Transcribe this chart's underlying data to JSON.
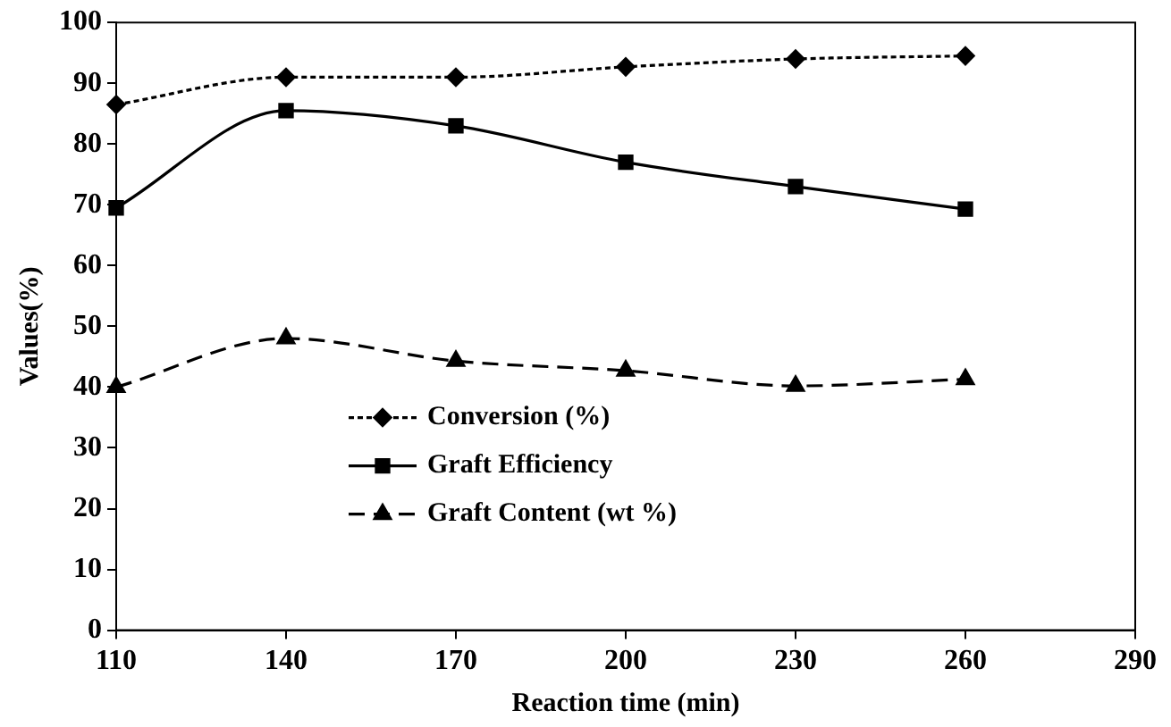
{
  "chart_data": {
    "type": "line",
    "xlabel": "Reaction time (min)",
    "ylabel": "Values(%)",
    "x": [
      110,
      140,
      170,
      200,
      230,
      260
    ],
    "series": [
      {
        "name": "Conversion (%)",
        "color": "#000000",
        "marker": "diamond",
        "line_style": "dotted",
        "values": [
          86.5,
          91,
          91,
          92.7,
          94,
          94.5
        ]
      },
      {
        "name": "Graft Efficiency",
        "color": "#000000",
        "marker": "square",
        "line_style": "solid",
        "values": [
          69.5,
          85.5,
          83,
          77,
          73,
          69.3
        ]
      },
      {
        "name": "Graft Content (wt %)",
        "color": "#000000",
        "marker": "triangle",
        "line_style": "dashed",
        "values": [
          40,
          48,
          44.3,
          42.7,
          40.2,
          41.3
        ]
      }
    ],
    "xlim": [
      110,
      290
    ],
    "xticks": [
      110,
      140,
      170,
      200,
      230,
      260,
      290
    ],
    "ylim": [
      0,
      100
    ],
    "yticks": [
      0,
      10,
      20,
      30,
      40,
      50,
      60,
      70,
      80,
      90,
      100
    ],
    "grid": false,
    "legend": "bottom left"
  }
}
